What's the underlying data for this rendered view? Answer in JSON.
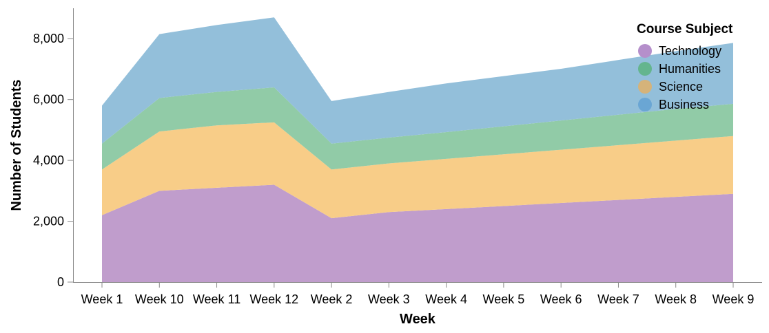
{
  "chart_data": {
    "type": "area",
    "stacked": true,
    "xlabel": "Week",
    "ylabel": "Number of Students",
    "ylim": [
      0,
      9000
    ],
    "yticks": [
      0,
      2000,
      4000,
      6000,
      8000
    ],
    "ytick_labels": [
      "0",
      "2,000",
      "4,000",
      "6,000",
      "8,000"
    ],
    "grid": false,
    "legend_title": "Course Subject",
    "legend_position": "top-right",
    "categories": [
      "Week 1",
      "Week 10",
      "Week 11",
      "Week 12",
      "Week 2",
      "Week 3",
      "Week 4",
      "Week 5",
      "Week 6",
      "Week 7",
      "Week 8",
      "Week 9"
    ],
    "series": [
      {
        "name": "Technology",
        "color": "#c09dcc",
        "values": [
          2200,
          3000,
          3100,
          3200,
          2100,
          2300,
          2400,
          2500,
          2600,
          2700,
          2800,
          2900
        ]
      },
      {
        "name": "Science",
        "color": "#f8cd88",
        "values": [
          1500,
          1950,
          2050,
          2050,
          1600,
          1600,
          1650,
          1700,
          1750,
          1800,
          1850,
          1900
        ]
      },
      {
        "name": "Humanities",
        "color": "#91cba7",
        "values": [
          850,
          1100,
          1100,
          1150,
          850,
          850,
          880,
          920,
          960,
          1000,
          1040,
          1060
        ]
      },
      {
        "name": "Business",
        "color": "#93bfda",
        "values": [
          1250,
          2100,
          2200,
          2300,
          1400,
          1500,
          1600,
          1650,
          1700,
          1800,
          1900,
          2000
        ]
      }
    ],
    "legend_order": [
      "Technology",
      "Humanities",
      "Science",
      "Business"
    ],
    "legend_colors": {
      "Technology": "#b58fcb",
      "Humanities": "#64b58e",
      "Science": "#d5b37a",
      "Business": "#6aa6d4"
    }
  }
}
